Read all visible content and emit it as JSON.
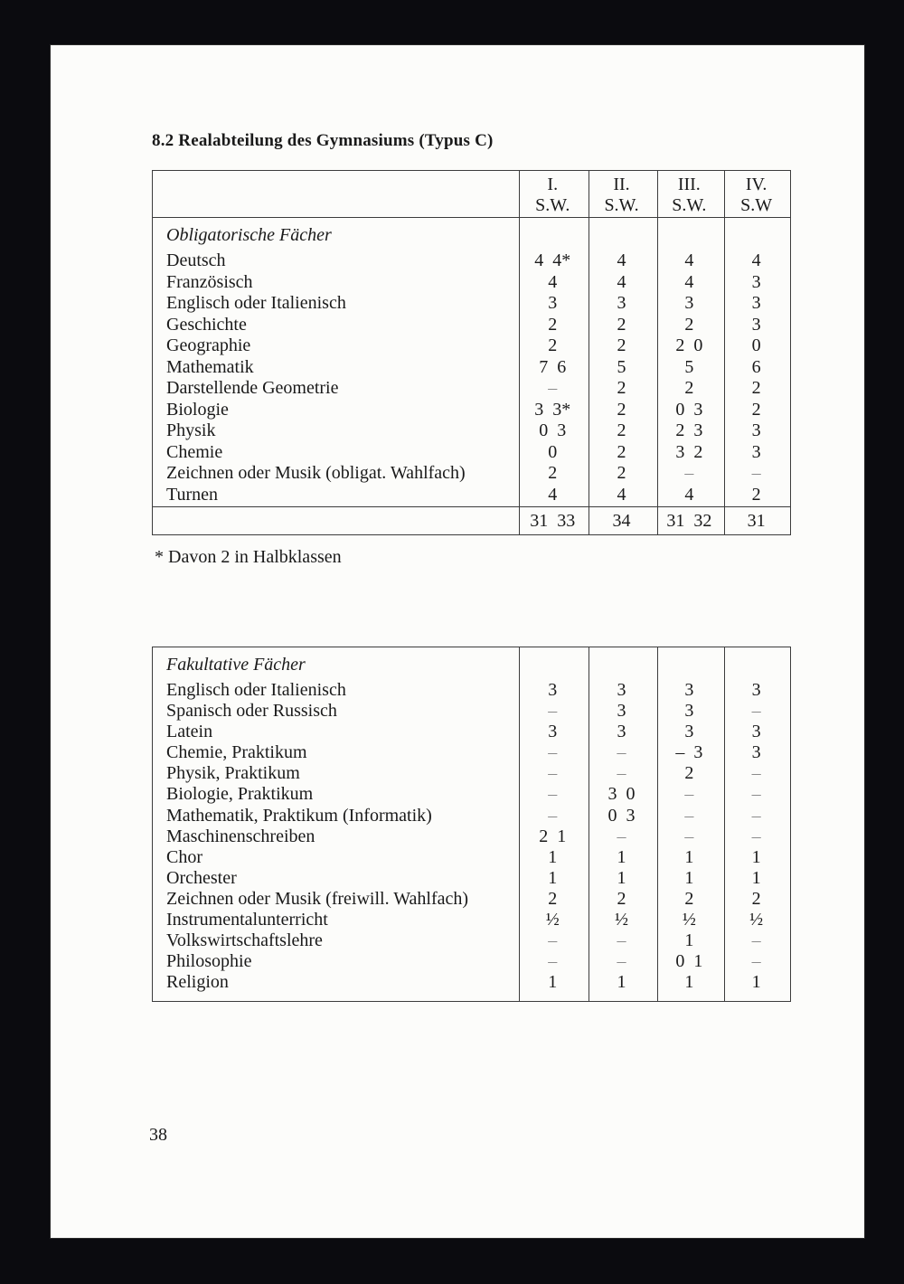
{
  "page": {
    "title": "8.2 Realabteilung des Gymnasiums (Typus C)",
    "footnote": "* Davon 2 in Halbklassen",
    "page_number": "38"
  },
  "columns": [
    "I.",
    "II.",
    "III.",
    "IV."
  ],
  "column_sub": [
    "S.W.",
    "S.W.",
    "S.W.",
    "S.W"
  ],
  "table1": {
    "section": "Obligatorische Fächer",
    "rows": [
      {
        "subject": "Deutsch",
        "values": [
          "4  4*",
          "4",
          "4",
          "4"
        ]
      },
      {
        "subject": "Französisch",
        "values": [
          "4",
          "4",
          "4",
          "3"
        ]
      },
      {
        "subject": "Englisch oder Italienisch",
        "values": [
          "3",
          "3",
          "3",
          "3"
        ]
      },
      {
        "subject": "Geschichte",
        "values": [
          "2",
          "2",
          "2",
          "3"
        ]
      },
      {
        "subject": "Geographie",
        "values": [
          "2",
          "2",
          "2  0",
          "0"
        ]
      },
      {
        "subject": "Mathematik",
        "values": [
          "7  6",
          "5",
          "5",
          "6"
        ]
      },
      {
        "subject": "Darstellende Geometrie",
        "values": [
          "–",
          "2",
          "2",
          "2"
        ]
      },
      {
        "subject": "Biologie",
        "values": [
          "3  3*",
          "2",
          "0  3",
          "2"
        ]
      },
      {
        "subject": "Physik",
        "values": [
          "0  3",
          "2",
          "2  3",
          "3"
        ]
      },
      {
        "subject": "Chemie",
        "values": [
          "0",
          "2",
          "3  2",
          "3"
        ]
      },
      {
        "subject": "Zeichnen oder Musik (obligat. Wahlfach)",
        "values": [
          "2",
          "2",
          "–",
          "–"
        ]
      },
      {
        "subject": "Turnen",
        "values": [
          "4",
          "4",
          "4",
          "2"
        ]
      }
    ],
    "totals": [
      "31  33",
      "34",
      "31  32",
      "31"
    ]
  },
  "table2": {
    "section": "Fakultative Fächer",
    "rows": [
      {
        "subject": "Englisch oder Italienisch",
        "values": [
          "3",
          "3",
          "3",
          "3"
        ]
      },
      {
        "subject": "Spanisch oder Russisch",
        "values": [
          "–",
          "3",
          "3",
          "–"
        ]
      },
      {
        "subject": "Latein",
        "values": [
          "3",
          "3",
          "3",
          "3"
        ]
      },
      {
        "subject": "Chemie, Praktikum",
        "values": [
          "–",
          "–",
          "–  3",
          "3"
        ]
      },
      {
        "subject": "Physik, Praktikum",
        "values": [
          "–",
          "–",
          "2",
          "–"
        ]
      },
      {
        "subject": "Biologie, Praktikum",
        "values": [
          "–",
          "3  0",
          "–",
          "–"
        ]
      },
      {
        "subject": "Mathematik, Praktikum (Informatik)",
        "values": [
          "–",
          "0  3",
          "–",
          "–"
        ]
      },
      {
        "subject": "Maschinenschreiben",
        "values": [
          "2  1",
          "–",
          "–",
          "–"
        ]
      },
      {
        "subject": "Chor",
        "values": [
          "1",
          "1",
          "1",
          "1"
        ]
      },
      {
        "subject": "Orchester",
        "values": [
          "1",
          "1",
          "1",
          "1"
        ]
      },
      {
        "subject": "Zeichnen oder Musik (freiwill. Wahlfach)",
        "values": [
          "2",
          "2",
          "2",
          "2"
        ]
      },
      {
        "subject": "Instrumentalunterricht",
        "values": [
          "½",
          "½",
          "½",
          "½"
        ]
      },
      {
        "subject": "Volkswirtschaftslehre",
        "values": [
          "–",
          "–",
          "1",
          "–"
        ]
      },
      {
        "subject": "Philosophie",
        "values": [
          "–",
          "–",
          "0  1",
          "–"
        ]
      },
      {
        "subject": "Religion",
        "values": [
          "1",
          "1",
          "1",
          "1"
        ]
      }
    ]
  },
  "colors": {
    "background": "#0b0b0f",
    "paper": "#fcfcfa",
    "ink": "#1a1a1a",
    "rule": "#3c3c3c",
    "faded_dash": "#8b8b8b"
  }
}
